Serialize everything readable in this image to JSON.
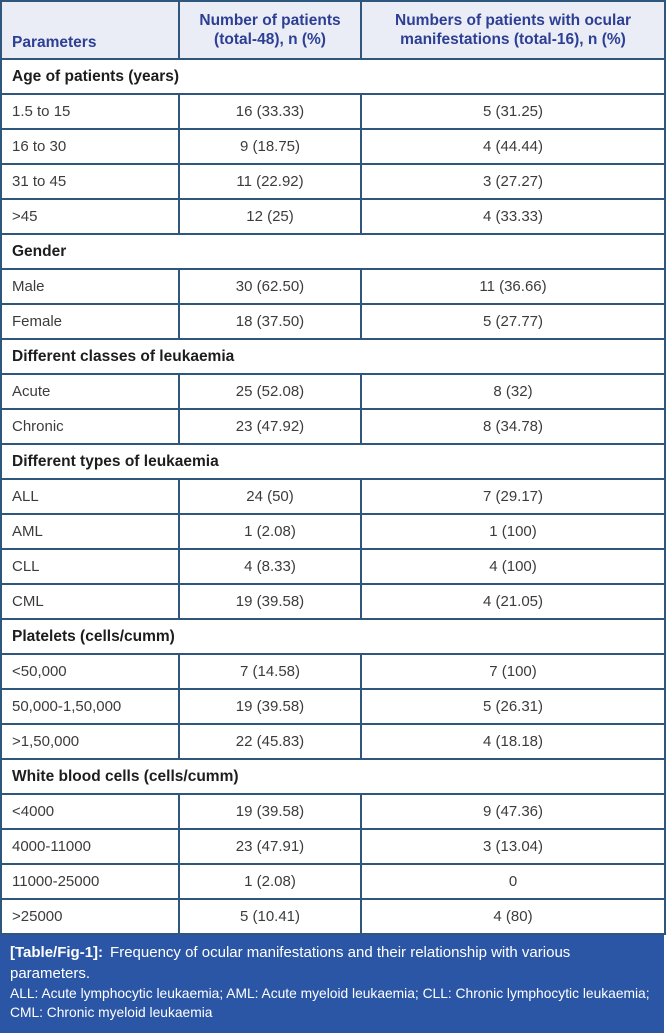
{
  "table": {
    "columns": [
      "Parameters",
      "Number of patients (total-48), n (%)",
      "Numbers of patients with ocular manifestations (total-16), n (%)"
    ],
    "sections": [
      {
        "title": "Age of patients (years)",
        "rows": [
          [
            "1.5 to 15",
            "16 (33.33)",
            "5 (31.25)"
          ],
          [
            "16 to 30",
            "9 (18.75)",
            "4 (44.44)"
          ],
          [
            "31 to 45",
            "11 (22.92)",
            "3 (27.27)"
          ],
          [
            ">45",
            "12 (25)",
            "4 (33.33)"
          ]
        ]
      },
      {
        "title": "Gender",
        "rows": [
          [
            "Male",
            "30 (62.50)",
            "11 (36.66)"
          ],
          [
            "Female",
            "18 (37.50)",
            "5 (27.77)"
          ]
        ]
      },
      {
        "title": "Different classes of leukaemia",
        "rows": [
          [
            "Acute",
            "25 (52.08)",
            "8 (32)"
          ],
          [
            "Chronic",
            "23 (47.92)",
            "8 (34.78)"
          ]
        ]
      },
      {
        "title": "Different types of leukaemia",
        "rows": [
          [
            "ALL",
            "24 (50)",
            "7 (29.17)"
          ],
          [
            "AML",
            "1 (2.08)",
            "1 (100)"
          ],
          [
            "CLL",
            "4 (8.33)",
            "4 (100)"
          ],
          [
            "CML",
            "19 (39.58)",
            "4 (21.05)"
          ]
        ]
      },
      {
        "title": "Platelets (cells/cumm)",
        "rows": [
          [
            "<50,000",
            "7 (14.58)",
            "7 (100)"
          ],
          [
            "50,000-1,50,000",
            "19 (39.58)",
            "5 (26.31)"
          ],
          [
            ">1,50,000",
            "22 (45.83)",
            "4 (18.18)"
          ]
        ]
      },
      {
        "title": "White blood cells (cells/cumm)",
        "rows": [
          [
            "<4000",
            "19 (39.58)",
            "9 (47.36)"
          ],
          [
            "4000-11000",
            "23 (47.91)",
            "3 (13.04)"
          ],
          [
            "11000-25000",
            "1 (2.08)",
            "0"
          ],
          [
            ">25000",
            "5 (10.41)",
            "4 (80)"
          ]
        ]
      }
    ]
  },
  "caption": {
    "label": "[Table/Fig-1]:",
    "text": "Frequency of ocular manifestations and their relationship with various parameters.",
    "abbreviations": "ALL: Acute lymphocytic leukaemia; AML: Acute myeloid leukaemia; CLL: Chronic lymphocytic leukaemia; CML: Chronic myeloid leukaemia"
  },
  "colors": {
    "table_border": "#2f567c",
    "header_background": "#ebedf6",
    "header_text": "#2c3f94",
    "body_text": "#3c3c3c",
    "caption_background": "#2b56a6",
    "caption_text": "#ffffff"
  }
}
